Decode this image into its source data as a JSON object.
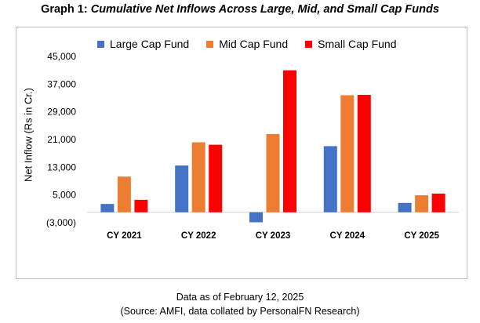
{
  "title": {
    "prefix": "Graph 1:",
    "text": "Cumulative Net Inflows Across Large, Mid, and Small Cap Funds"
  },
  "footer": {
    "line1": "Data as of February 12, 2025",
    "line2": "(Source: AMFI, data collated by PersonalFN Research)"
  },
  "chart_data": {
    "type": "bar",
    "title": "Graph 1: Cumulative Net Inflows Across Large, Mid, and Small Cap Funds",
    "xlabel": "",
    "ylabel": "Net Inflow (Rs in Cr.)",
    "categories": [
      "CY 2021",
      "CY 2022",
      "CY 2023",
      "CY 2024",
      "CY 2025"
    ],
    "series": [
      {
        "name": "Large Cap Fund",
        "color": "#4472C4",
        "values": [
          2400,
          13500,
          -2900,
          19100,
          2700
        ]
      },
      {
        "name": "Mid Cap Fund",
        "color": "#ED7D31",
        "values": [
          10300,
          20200,
          22600,
          33800,
          4900
        ]
      },
      {
        "name": "Small Cap Fund",
        "color": "#FF0000",
        "values": [
          3600,
          19500,
          41000,
          33900,
          5400
        ]
      }
    ],
    "ylim": [
      -3000,
      45000
    ],
    "yticks": [
      -3000,
      5000,
      13000,
      21000,
      29000,
      37000,
      45000
    ],
    "ytick_labels": [
      "(3,000)",
      "5,000",
      "13,000",
      "21,000",
      "29,000",
      "37,000",
      "45,000"
    ],
    "grid": false,
    "legend": "top"
  }
}
